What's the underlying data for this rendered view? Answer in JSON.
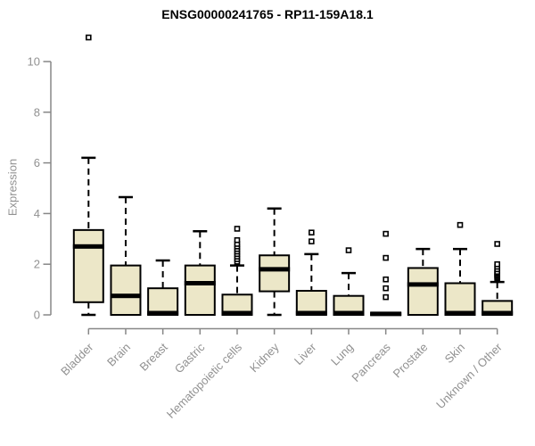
{
  "window": {
    "background": "#ffffff"
  },
  "colors": {
    "box_fill": "#ece7c8",
    "box_stroke": "#000000",
    "median": "#000000",
    "whisker": "#000000",
    "outlier_stroke": "#000000",
    "outlier_fill": "#ffffff",
    "axis_line": "#878787",
    "tick_label": "#919191",
    "title": "#000000"
  },
  "chart_data": {
    "type": "boxplot",
    "title": "ENSG00000241765 - RP11-159A18.1",
    "xlabel": "",
    "ylabel": "Expression",
    "ylim": [
      -0.55,
      11.5
    ],
    "yticks": [
      0,
      2,
      4,
      6,
      8,
      10
    ],
    "ytick_labels": [
      "0",
      "2",
      "4",
      "6",
      "8",
      "10"
    ],
    "grid": "off",
    "legend": "none",
    "categories": [
      "Bladder",
      "Brain",
      "Breast",
      "Gastric",
      "Hematopoietic cells",
      "Kidney",
      "Liver",
      "Lung",
      "Pancreas",
      "Prostate",
      "Skin",
      "Unknown / Other"
    ],
    "boxes": [
      {
        "category": "Bladder",
        "whisker_low": 0,
        "q1": 0.5,
        "median": 2.7,
        "q3": 3.35,
        "whisker_high": 6.2,
        "outliers": [
          10.95
        ]
      },
      {
        "category": "Brain",
        "whisker_low": 0,
        "q1": 0,
        "median": 0.75,
        "q3": 1.95,
        "whisker_high": 4.65,
        "outliers": []
      },
      {
        "category": "Breast",
        "whisker_low": 0,
        "q1": 0,
        "median": 0.07,
        "q3": 1.05,
        "whisker_high": 2.15,
        "outliers": []
      },
      {
        "category": "Gastric",
        "whisker_low": 0,
        "q1": 0,
        "median": 1.25,
        "q3": 1.95,
        "whisker_high": 3.3,
        "outliers": []
      },
      {
        "category": "Hematopoietic cells",
        "whisker_low": 0,
        "q1": 0,
        "median": 0.07,
        "q3": 0.8,
        "whisker_high": 1.95,
        "outliers": [
          2.1,
          2.2,
          2.3,
          2.4,
          2.5,
          2.6,
          2.7,
          2.8,
          2.95,
          3.4
        ]
      },
      {
        "category": "Kidney",
        "whisker_low": 0,
        "q1": 0.93,
        "median": 1.8,
        "q3": 2.35,
        "whisker_high": 4.2,
        "outliers": []
      },
      {
        "category": "Liver",
        "whisker_low": 0,
        "q1": 0,
        "median": 0.07,
        "q3": 0.95,
        "whisker_high": 2.4,
        "outliers": [
          2.9,
          3.25
        ]
      },
      {
        "category": "Lung",
        "whisker_low": 0,
        "q1": 0,
        "median": 0.07,
        "q3": 0.75,
        "whisker_high": 1.65,
        "outliers": [
          2.55
        ]
      },
      {
        "category": "Pancreas",
        "whisker_low": 0,
        "q1": 0,
        "median": 0.04,
        "q3": 0.07,
        "whisker_high": 0.07,
        "outliers": [
          0.7,
          1.05,
          1.4,
          2.25,
          3.2
        ]
      },
      {
        "category": "Prostate",
        "whisker_low": 0,
        "q1": 0,
        "median": 1.2,
        "q3": 1.85,
        "whisker_high": 2.6,
        "outliers": []
      },
      {
        "category": "Skin",
        "whisker_low": 0,
        "q1": 0,
        "median": 0.07,
        "q3": 1.25,
        "whisker_high": 2.6,
        "outliers": [
          3.55
        ]
      },
      {
        "category": "Unknown / Other",
        "whisker_low": 0,
        "q1": 0,
        "median": 0.07,
        "q3": 0.55,
        "whisker_high": 1.3,
        "outliers": [
          1.45,
          1.5,
          1.55,
          1.6,
          1.65,
          1.7,
          1.8,
          1.9,
          2.0,
          2.8
        ]
      }
    ]
  }
}
